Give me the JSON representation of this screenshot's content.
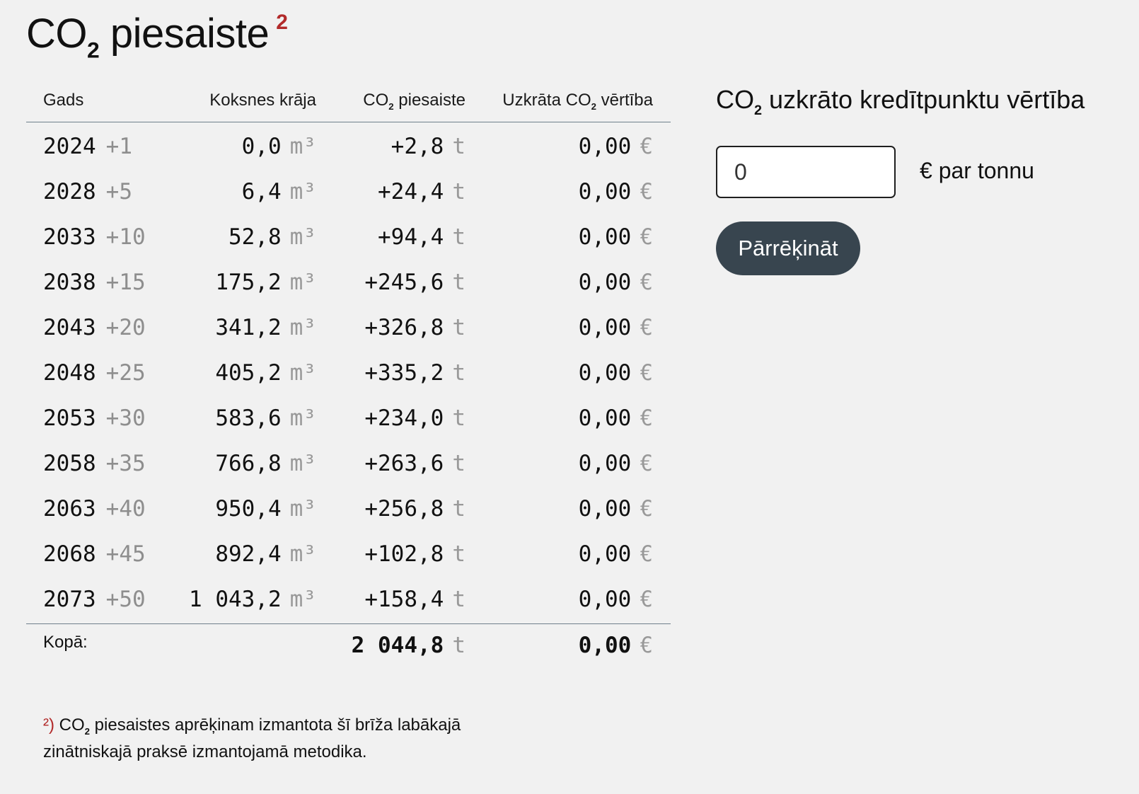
{
  "title": {
    "pre": "CO",
    "sub": "2",
    "post": " piesaiste",
    "footnote": "2"
  },
  "table": {
    "headers": {
      "year": "Gads",
      "wood": "Koksnes krāja",
      "co2_pre": "CO",
      "co2_sub": "2",
      "co2_post": " piesaiste",
      "val_pre": "Uzkrāta CO",
      "val_sub": "2",
      "val_post": " vērtība"
    },
    "units": {
      "wood": "m³",
      "co2": "t",
      "value": "€"
    },
    "rows": [
      {
        "year": "2024",
        "offset": "+1",
        "wood": "0,0",
        "co2": "+2,8",
        "value": "0,00"
      },
      {
        "year": "2028",
        "offset": "+5",
        "wood": "6,4",
        "co2": "+24,4",
        "value": "0,00"
      },
      {
        "year": "2033",
        "offset": "+10",
        "wood": "52,8",
        "co2": "+94,4",
        "value": "0,00"
      },
      {
        "year": "2038",
        "offset": "+15",
        "wood": "175,2",
        "co2": "+245,6",
        "value": "0,00"
      },
      {
        "year": "2043",
        "offset": "+20",
        "wood": "341,2",
        "co2": "+326,8",
        "value": "0,00"
      },
      {
        "year": "2048",
        "offset": "+25",
        "wood": "405,2",
        "co2": "+335,2",
        "value": "0,00"
      },
      {
        "year": "2053",
        "offset": "+30",
        "wood": "583,6",
        "co2": "+234,0",
        "value": "0,00"
      },
      {
        "year": "2058",
        "offset": "+35",
        "wood": "766,8",
        "co2": "+263,6",
        "value": "0,00"
      },
      {
        "year": "2063",
        "offset": "+40",
        "wood": "950,4",
        "co2": "+256,8",
        "value": "0,00"
      },
      {
        "year": "2068",
        "offset": "+45",
        "wood": "892,4",
        "co2": "+102,8",
        "value": "0,00"
      },
      {
        "year": "2073",
        "offset": "+50",
        "wood": "1 043,2",
        "co2": "+158,4",
        "value": "0,00"
      }
    ],
    "total": {
      "label": "Kopā:",
      "co2": "2 044,8",
      "value": "0,00"
    }
  },
  "calculator": {
    "title_pre": "CO",
    "title_sub": "2",
    "title_post": " uzkrāto kredītpunktu vērtība",
    "input_value": "0",
    "unit_label": "€ par tonnu",
    "button_label": "Pārrēķināt"
  },
  "footnote": {
    "mark": "²)",
    "line1_pre": " CO",
    "line1_sub": "2",
    "line1_post": " piesaistes aprēķinam izmantota šī brīža labākajā",
    "line2": "zinātniskajā praksē izmantojamā metodika."
  }
}
